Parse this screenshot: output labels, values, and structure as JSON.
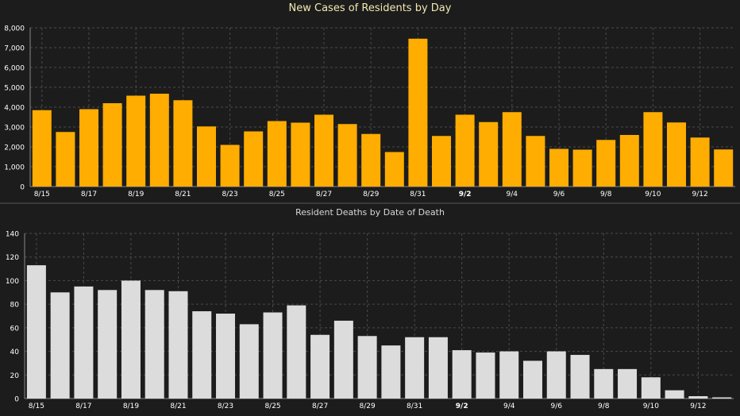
{
  "chart_data": [
    {
      "type": "bar",
      "title": "New Cases of Residents by Day",
      "xlabel": "",
      "ylabel": "",
      "ylim": [
        0,
        8000
      ],
      "yticks": [
        "0",
        "1,000",
        "2,000",
        "3,000",
        "4,000",
        "5,000",
        "6,000",
        "7,000",
        "8,000"
      ],
      "ytick_values": [
        0,
        1000,
        2000,
        3000,
        4000,
        5000,
        6000,
        7000,
        8000
      ],
      "categories": [
        "8/15",
        "8/16",
        "8/17",
        "8/18",
        "8/19",
        "8/20",
        "8/21",
        "8/22",
        "8/23",
        "8/24",
        "8/25",
        "8/26",
        "8/27",
        "8/28",
        "8/29",
        "8/30",
        "8/31",
        "9/1",
        "9/2",
        "9/3",
        "9/4",
        "9/5",
        "9/6",
        "9/7",
        "9/8",
        "9/9",
        "9/10",
        "9/11",
        "9/12",
        "9/13"
      ],
      "xtick_labels": [
        "8/15",
        "",
        "8/17",
        "",
        "8/19",
        "",
        "8/21",
        "",
        "8/23",
        "",
        "8/25",
        "",
        "8/27",
        "",
        "8/29",
        "",
        "8/31",
        "",
        "9/2",
        "",
        "9/4",
        "",
        "9/6",
        "",
        "9/8",
        "",
        "9/10",
        "",
        "9/12",
        ""
      ],
      "values": [
        3850,
        2750,
        3900,
        4200,
        4580,
        4680,
        4350,
        3030,
        2100,
        2780,
        3300,
        3220,
        3620,
        3150,
        2650,
        1740,
        7450,
        2550,
        3620,
        3250,
        3750,
        2550,
        1900,
        1860,
        2350,
        2600,
        3750,
        3230,
        2470,
        1870
      ],
      "bar_color": "#ffad00",
      "grid": true
    },
    {
      "type": "bar",
      "title": "Resident Deaths by Date of Death",
      "xlabel": "",
      "ylabel": "",
      "ylim": [
        0,
        140
      ],
      "yticks": [
        "0",
        "20",
        "40",
        "60",
        "80",
        "100",
        "120",
        "140"
      ],
      "ytick_values": [
        0,
        20,
        40,
        60,
        80,
        100,
        120,
        140
      ],
      "categories": [
        "8/15",
        "8/16",
        "8/17",
        "8/18",
        "8/19",
        "8/20",
        "8/21",
        "8/22",
        "8/23",
        "8/24",
        "8/25",
        "8/26",
        "8/27",
        "8/28",
        "8/29",
        "8/30",
        "8/31",
        "9/1",
        "9/2",
        "9/3",
        "9/4",
        "9/5",
        "9/6",
        "9/7",
        "9/8",
        "9/9",
        "9/10",
        "9/11",
        "9/12",
        "9/13"
      ],
      "xtick_labels": [
        "8/15",
        "",
        "8/17",
        "",
        "8/19",
        "",
        "8/21",
        "",
        "8/23",
        "",
        "8/25",
        "",
        "8/27",
        "",
        "8/29",
        "",
        "8/31",
        "",
        "9/2",
        "",
        "9/4",
        "",
        "9/6",
        "",
        "9/8",
        "",
        "9/10",
        "",
        "9/12",
        ""
      ],
      "values": [
        113,
        90,
        95,
        92,
        100,
        92,
        91,
        74,
        72,
        63,
        73,
        79,
        54,
        66,
        53,
        45,
        52,
        52,
        41,
        39,
        40,
        32,
        40,
        37,
        25,
        25,
        18,
        7,
        2,
        1
      ],
      "bar_color": "#dcdcdc",
      "grid": true
    }
  ],
  "colors": {
    "background": "#1c1c1c",
    "grid": "#4a4a4a",
    "tick_text": "#ffffff",
    "title_top": "#f2e8b0",
    "title_bottom": "#d8d8d8"
  }
}
